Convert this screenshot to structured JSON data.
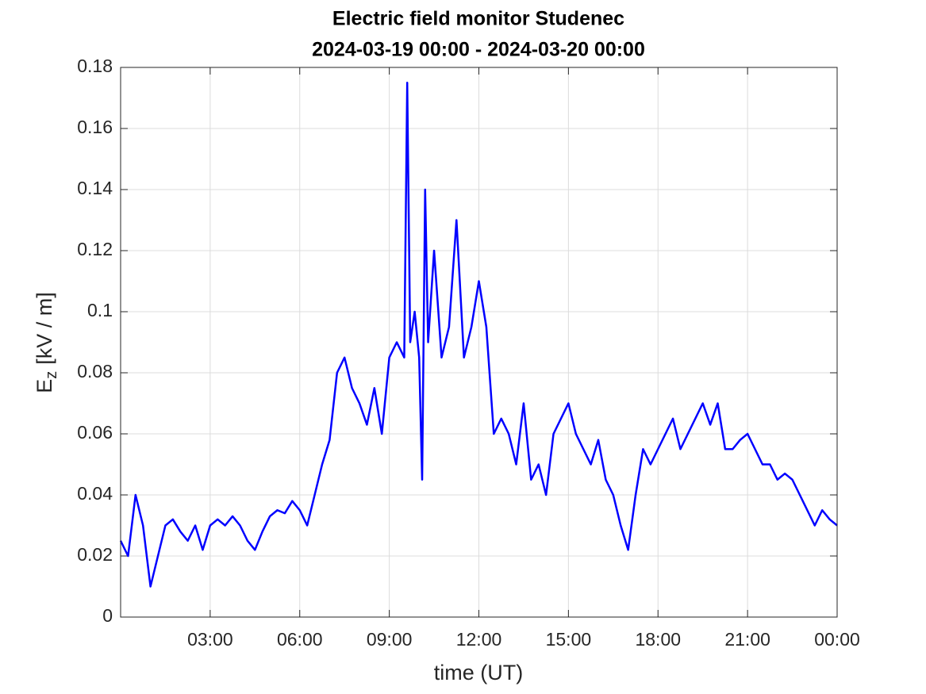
{
  "chart_data": {
    "type": "line",
    "title": "Electric field monitor Studenec",
    "subtitle": "2024-03-19 00:00 - 2024-03-20 00:00",
    "xlabel": "time (UT)",
    "ylabel": "E",
    "ylabel_subscript": "z",
    "ylabel_unit": "[kV / m]",
    "x": [
      0,
      0.25,
      0.5,
      0.75,
      1,
      1.25,
      1.5,
      1.75,
      2,
      2.25,
      2.5,
      2.75,
      3,
      3.25,
      3.5,
      3.75,
      4,
      4.25,
      4.5,
      4.75,
      5,
      5.25,
      5.5,
      5.75,
      6,
      6.25,
      6.5,
      6.75,
      7,
      7.25,
      7.5,
      7.75,
      8,
      8.25,
      8.5,
      8.75,
      9,
      9.25,
      9.5,
      9.6,
      9.7,
      9.85,
      10,
      10.1,
      10.2,
      10.3,
      10.5,
      10.75,
      11,
      11.25,
      11.5,
      11.75,
      12,
      12.25,
      12.5,
      12.75,
      13,
      13.25,
      13.5,
      13.75,
      14,
      14.25,
      14.5,
      14.75,
      15,
      15.25,
      15.5,
      15.75,
      16,
      16.25,
      16.5,
      16.75,
      17,
      17.25,
      17.5,
      17.75,
      18,
      18.25,
      18.5,
      18.75,
      19,
      19.25,
      19.5,
      19.75,
      20,
      20.25,
      20.5,
      20.75,
      21,
      21.25,
      21.5,
      21.75,
      22,
      22.25,
      22.5,
      22.75,
      23,
      23.25,
      23.5,
      23.75,
      24
    ],
    "series": [
      {
        "name": "Ez",
        "color": "#0000ff",
        "values": [
          0.025,
          0.02,
          0.04,
          0.03,
          0.01,
          0.02,
          0.03,
          0.032,
          0.028,
          0.025,
          0.03,
          0.022,
          0.03,
          0.032,
          0.03,
          0.033,
          0.03,
          0.025,
          0.022,
          0.028,
          0.033,
          0.035,
          0.034,
          0.038,
          0.035,
          0.03,
          0.04,
          0.05,
          0.058,
          0.08,
          0.085,
          0.075,
          0.07,
          0.063,
          0.075,
          0.06,
          0.085,
          0.09,
          0.085,
          0.175,
          0.09,
          0.1,
          0.085,
          0.045,
          0.14,
          0.09,
          0.12,
          0.085,
          0.095,
          0.13,
          0.085,
          0.095,
          0.11,
          0.095,
          0.06,
          0.065,
          0.06,
          0.05,
          0.07,
          0.045,
          0.05,
          0.04,
          0.06,
          0.065,
          0.07,
          0.06,
          0.055,
          0.05,
          0.058,
          0.045,
          0.04,
          0.03,
          0.022,
          0.04,
          0.055,
          0.05,
          0.055,
          0.06,
          0.065,
          0.055,
          0.06,
          0.065,
          0.07,
          0.063,
          0.07,
          0.055,
          0.055,
          0.058,
          0.06,
          0.055,
          0.05,
          0.05,
          0.045,
          0.047,
          0.045,
          0.04,
          0.035,
          0.03,
          0.035,
          0.032,
          0.03
        ]
      }
    ],
    "xlim": [
      0,
      24
    ],
    "xticks": [
      {
        "value": 3,
        "label": "03:00"
      },
      {
        "value": 6,
        "label": "06:00"
      },
      {
        "value": 9,
        "label": "09:00"
      },
      {
        "value": 12,
        "label": "12:00"
      },
      {
        "value": 15,
        "label": "15:00"
      },
      {
        "value": 18,
        "label": "18:00"
      },
      {
        "value": 21,
        "label": "21:00"
      },
      {
        "value": 24,
        "label": "00:00"
      }
    ],
    "ylim": [
      0,
      0.18
    ],
    "yticks": [
      0,
      0.02,
      0.04,
      0.06,
      0.08,
      0.1,
      0.12,
      0.14,
      0.16,
      0.18
    ],
    "grid": true
  }
}
